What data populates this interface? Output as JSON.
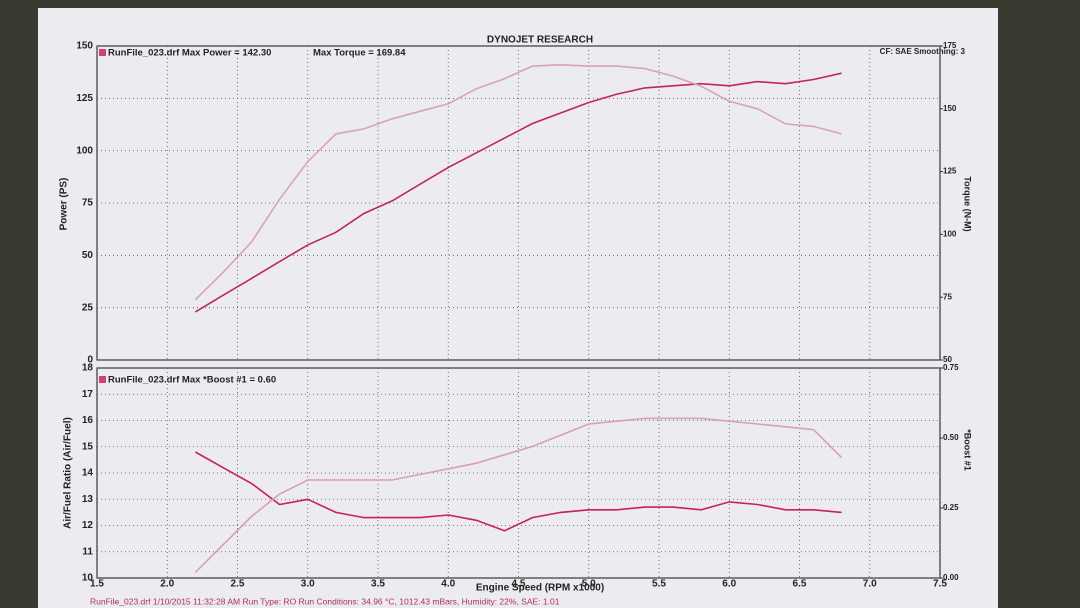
{
  "chart_data": [
    {
      "type": "line",
      "title": "DYNOJET RESEARCH",
      "annotations": [
        "RunFile_023.drf Max Power = 142.30",
        "Max Torque = 169.84",
        "CF: SAE  Smoothing: 3"
      ],
      "ylabel": "Power (PS)",
      "y2label": "Torque (N-M)",
      "xlim": [
        1.5,
        7.5
      ],
      "ylim": [
        0,
        150
      ],
      "yticks": [
        0,
        25,
        50,
        75,
        100,
        125,
        150
      ],
      "y2lim": [
        50,
        175
      ],
      "y2ticks": [
        50,
        75,
        100,
        125,
        150,
        175
      ],
      "grid": true,
      "x": [
        2.2,
        2.4,
        2.6,
        2.8,
        3.0,
        3.2,
        3.4,
        3.6,
        3.8,
        4.0,
        4.2,
        4.4,
        4.6,
        4.8,
        5.0,
        5.2,
        5.4,
        5.6,
        5.8,
        6.0,
        6.2,
        6.4,
        6.6,
        6.8
      ],
      "series": [
        {
          "color": "#c0265a",
          "values": [
            23,
            31,
            39,
            47,
            55,
            61,
            70,
            76,
            84,
            92,
            99,
            106,
            113,
            118,
            123,
            127,
            130,
            131,
            132,
            131,
            133,
            132,
            134,
            137
          ]
        },
        {
          "color": "#d9a3b5",
          "axis": "y2",
          "values": [
            74,
            85,
            97,
            114,
            129,
            140,
            142,
            146,
            149,
            152,
            158,
            162,
            167,
            167.5,
            167,
            167,
            166,
            163,
            159,
            153,
            150,
            144,
            143,
            140
          ]
        }
      ]
    },
    {
      "type": "line",
      "annotations": [
        "RunFile_023.drf Max *Boost #1 = 0.60"
      ],
      "ylabel": "Air/Fuel Ratio (Air/Fuel)",
      "y2label": "*Boost #1",
      "xlabel": "Engine Speed (RPM x1000)",
      "footnote": "RunFile_023.drf  1/10/2015 11:32:28 AM  Run Type: RO  Run Conditions: 34.96 °C, 1012.43 mBars, Humidity: 22%, SAE: 1.01",
      "xlim": [
        1.5,
        7.5
      ],
      "xticks": [
        1.5,
        {
          "value": 2,
          "label": "2.0"
        },
        2.5,
        {
          "value": 3,
          "label": "3.0"
        },
        3.5,
        {
          "value": 4,
          "label": "4.0"
        },
        4.5,
        {
          "value": 5,
          "label": "5.0"
        },
        5.5,
        {
          "value": 6,
          "label": "6.0"
        },
        6.5,
        {
          "value": 7,
          "label": "7.0"
        },
        7.5
      ],
      "ylim": [
        10,
        18
      ],
      "yticks": [
        10,
        11,
        12,
        13,
        14,
        15,
        16,
        17,
        18
      ],
      "y2lim": [
        0,
        0.75
      ],
      "y2ticks": [
        {
          "value": 0,
          "label": "0.00"
        },
        0.25,
        {
          "value": 0.5,
          "label": "0.50"
        },
        0.75
      ],
      "grid": true,
      "x": [
        2.2,
        2.4,
        2.6,
        2.8,
        3.0,
        3.2,
        3.4,
        3.6,
        3.8,
        4.0,
        4.2,
        4.4,
        4.6,
        4.8,
        5.0,
        5.2,
        5.4,
        5.6,
        5.8,
        6.0,
        6.2,
        6.4,
        6.6,
        6.8
      ],
      "series": [
        {
          "color": "#c8205a",
          "values": [
            14.8,
            14.2,
            13.6,
            12.8,
            13.0,
            12.5,
            12.3,
            12.3,
            12.3,
            12.4,
            12.2,
            11.8,
            12.3,
            12.5,
            12.6,
            12.6,
            12.7,
            12.7,
            12.6,
            12.9,
            12.8,
            12.6,
            12.6,
            12.5
          ]
        },
        {
          "color": "#d8a0b0",
          "axis": "y2",
          "values": [
            0.02,
            0.12,
            0.22,
            0.3,
            0.35,
            0.35,
            0.35,
            0.35,
            0.37,
            0.39,
            0.41,
            0.44,
            0.47,
            0.51,
            0.55,
            0.56,
            0.57,
            0.57,
            0.57,
            0.56,
            0.55,
            0.54,
            0.53,
            0.43
          ]
        }
      ]
    }
  ]
}
